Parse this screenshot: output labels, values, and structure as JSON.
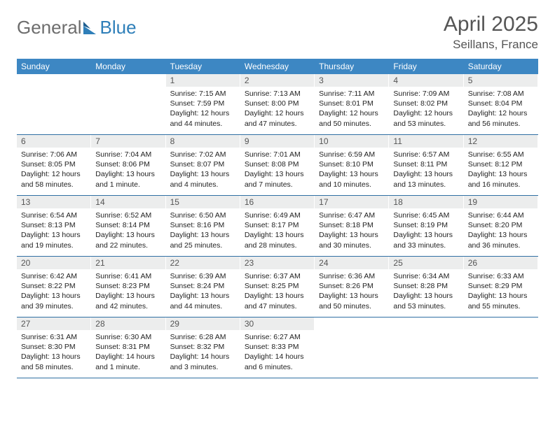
{
  "brand": {
    "part1": "General",
    "part2": "Blue"
  },
  "title": {
    "month": "April 2025",
    "location": "Seillans, France"
  },
  "colors": {
    "header_bg": "#3d87c3",
    "week_border": "#2f6fa3",
    "daynum_bg": "#eceded",
    "text": "#222222",
    "muted": "#555555",
    "brand_blue": "#2f7fb9"
  },
  "dayNames": [
    "Sunday",
    "Monday",
    "Tuesday",
    "Wednesday",
    "Thursday",
    "Friday",
    "Saturday"
  ],
  "weeks": [
    [
      null,
      null,
      {
        "n": "1",
        "sunrise": "Sunrise: 7:15 AM",
        "sunset": "Sunset: 7:59 PM",
        "day1": "Daylight: 12 hours",
        "day2": "and 44 minutes."
      },
      {
        "n": "2",
        "sunrise": "Sunrise: 7:13 AM",
        "sunset": "Sunset: 8:00 PM",
        "day1": "Daylight: 12 hours",
        "day2": "and 47 minutes."
      },
      {
        "n": "3",
        "sunrise": "Sunrise: 7:11 AM",
        "sunset": "Sunset: 8:01 PM",
        "day1": "Daylight: 12 hours",
        "day2": "and 50 minutes."
      },
      {
        "n": "4",
        "sunrise": "Sunrise: 7:09 AM",
        "sunset": "Sunset: 8:02 PM",
        "day1": "Daylight: 12 hours",
        "day2": "and 53 minutes."
      },
      {
        "n": "5",
        "sunrise": "Sunrise: 7:08 AM",
        "sunset": "Sunset: 8:04 PM",
        "day1": "Daylight: 12 hours",
        "day2": "and 56 minutes."
      }
    ],
    [
      {
        "n": "6",
        "sunrise": "Sunrise: 7:06 AM",
        "sunset": "Sunset: 8:05 PM",
        "day1": "Daylight: 12 hours",
        "day2": "and 58 minutes."
      },
      {
        "n": "7",
        "sunrise": "Sunrise: 7:04 AM",
        "sunset": "Sunset: 8:06 PM",
        "day1": "Daylight: 13 hours",
        "day2": "and 1 minute."
      },
      {
        "n": "8",
        "sunrise": "Sunrise: 7:02 AM",
        "sunset": "Sunset: 8:07 PM",
        "day1": "Daylight: 13 hours",
        "day2": "and 4 minutes."
      },
      {
        "n": "9",
        "sunrise": "Sunrise: 7:01 AM",
        "sunset": "Sunset: 8:08 PM",
        "day1": "Daylight: 13 hours",
        "day2": "and 7 minutes."
      },
      {
        "n": "10",
        "sunrise": "Sunrise: 6:59 AM",
        "sunset": "Sunset: 8:10 PM",
        "day1": "Daylight: 13 hours",
        "day2": "and 10 minutes."
      },
      {
        "n": "11",
        "sunrise": "Sunrise: 6:57 AM",
        "sunset": "Sunset: 8:11 PM",
        "day1": "Daylight: 13 hours",
        "day2": "and 13 minutes."
      },
      {
        "n": "12",
        "sunrise": "Sunrise: 6:55 AM",
        "sunset": "Sunset: 8:12 PM",
        "day1": "Daylight: 13 hours",
        "day2": "and 16 minutes."
      }
    ],
    [
      {
        "n": "13",
        "sunrise": "Sunrise: 6:54 AM",
        "sunset": "Sunset: 8:13 PM",
        "day1": "Daylight: 13 hours",
        "day2": "and 19 minutes."
      },
      {
        "n": "14",
        "sunrise": "Sunrise: 6:52 AM",
        "sunset": "Sunset: 8:14 PM",
        "day1": "Daylight: 13 hours",
        "day2": "and 22 minutes."
      },
      {
        "n": "15",
        "sunrise": "Sunrise: 6:50 AM",
        "sunset": "Sunset: 8:16 PM",
        "day1": "Daylight: 13 hours",
        "day2": "and 25 minutes."
      },
      {
        "n": "16",
        "sunrise": "Sunrise: 6:49 AM",
        "sunset": "Sunset: 8:17 PM",
        "day1": "Daylight: 13 hours",
        "day2": "and 28 minutes."
      },
      {
        "n": "17",
        "sunrise": "Sunrise: 6:47 AM",
        "sunset": "Sunset: 8:18 PM",
        "day1": "Daylight: 13 hours",
        "day2": "and 30 minutes."
      },
      {
        "n": "18",
        "sunrise": "Sunrise: 6:45 AM",
        "sunset": "Sunset: 8:19 PM",
        "day1": "Daylight: 13 hours",
        "day2": "and 33 minutes."
      },
      {
        "n": "19",
        "sunrise": "Sunrise: 6:44 AM",
        "sunset": "Sunset: 8:20 PM",
        "day1": "Daylight: 13 hours",
        "day2": "and 36 minutes."
      }
    ],
    [
      {
        "n": "20",
        "sunrise": "Sunrise: 6:42 AM",
        "sunset": "Sunset: 8:22 PM",
        "day1": "Daylight: 13 hours",
        "day2": "and 39 minutes."
      },
      {
        "n": "21",
        "sunrise": "Sunrise: 6:41 AM",
        "sunset": "Sunset: 8:23 PM",
        "day1": "Daylight: 13 hours",
        "day2": "and 42 minutes."
      },
      {
        "n": "22",
        "sunrise": "Sunrise: 6:39 AM",
        "sunset": "Sunset: 8:24 PM",
        "day1": "Daylight: 13 hours",
        "day2": "and 44 minutes."
      },
      {
        "n": "23",
        "sunrise": "Sunrise: 6:37 AM",
        "sunset": "Sunset: 8:25 PM",
        "day1": "Daylight: 13 hours",
        "day2": "and 47 minutes."
      },
      {
        "n": "24",
        "sunrise": "Sunrise: 6:36 AM",
        "sunset": "Sunset: 8:26 PM",
        "day1": "Daylight: 13 hours",
        "day2": "and 50 minutes."
      },
      {
        "n": "25",
        "sunrise": "Sunrise: 6:34 AM",
        "sunset": "Sunset: 8:28 PM",
        "day1": "Daylight: 13 hours",
        "day2": "and 53 minutes."
      },
      {
        "n": "26",
        "sunrise": "Sunrise: 6:33 AM",
        "sunset": "Sunset: 8:29 PM",
        "day1": "Daylight: 13 hours",
        "day2": "and 55 minutes."
      }
    ],
    [
      {
        "n": "27",
        "sunrise": "Sunrise: 6:31 AM",
        "sunset": "Sunset: 8:30 PM",
        "day1": "Daylight: 13 hours",
        "day2": "and 58 minutes."
      },
      {
        "n": "28",
        "sunrise": "Sunrise: 6:30 AM",
        "sunset": "Sunset: 8:31 PM",
        "day1": "Daylight: 14 hours",
        "day2": "and 1 minute."
      },
      {
        "n": "29",
        "sunrise": "Sunrise: 6:28 AM",
        "sunset": "Sunset: 8:32 PM",
        "day1": "Daylight: 14 hours",
        "day2": "and 3 minutes."
      },
      {
        "n": "30",
        "sunrise": "Sunrise: 6:27 AM",
        "sunset": "Sunset: 8:33 PM",
        "day1": "Daylight: 14 hours",
        "day2": "and 6 minutes."
      },
      null,
      null,
      null
    ]
  ]
}
